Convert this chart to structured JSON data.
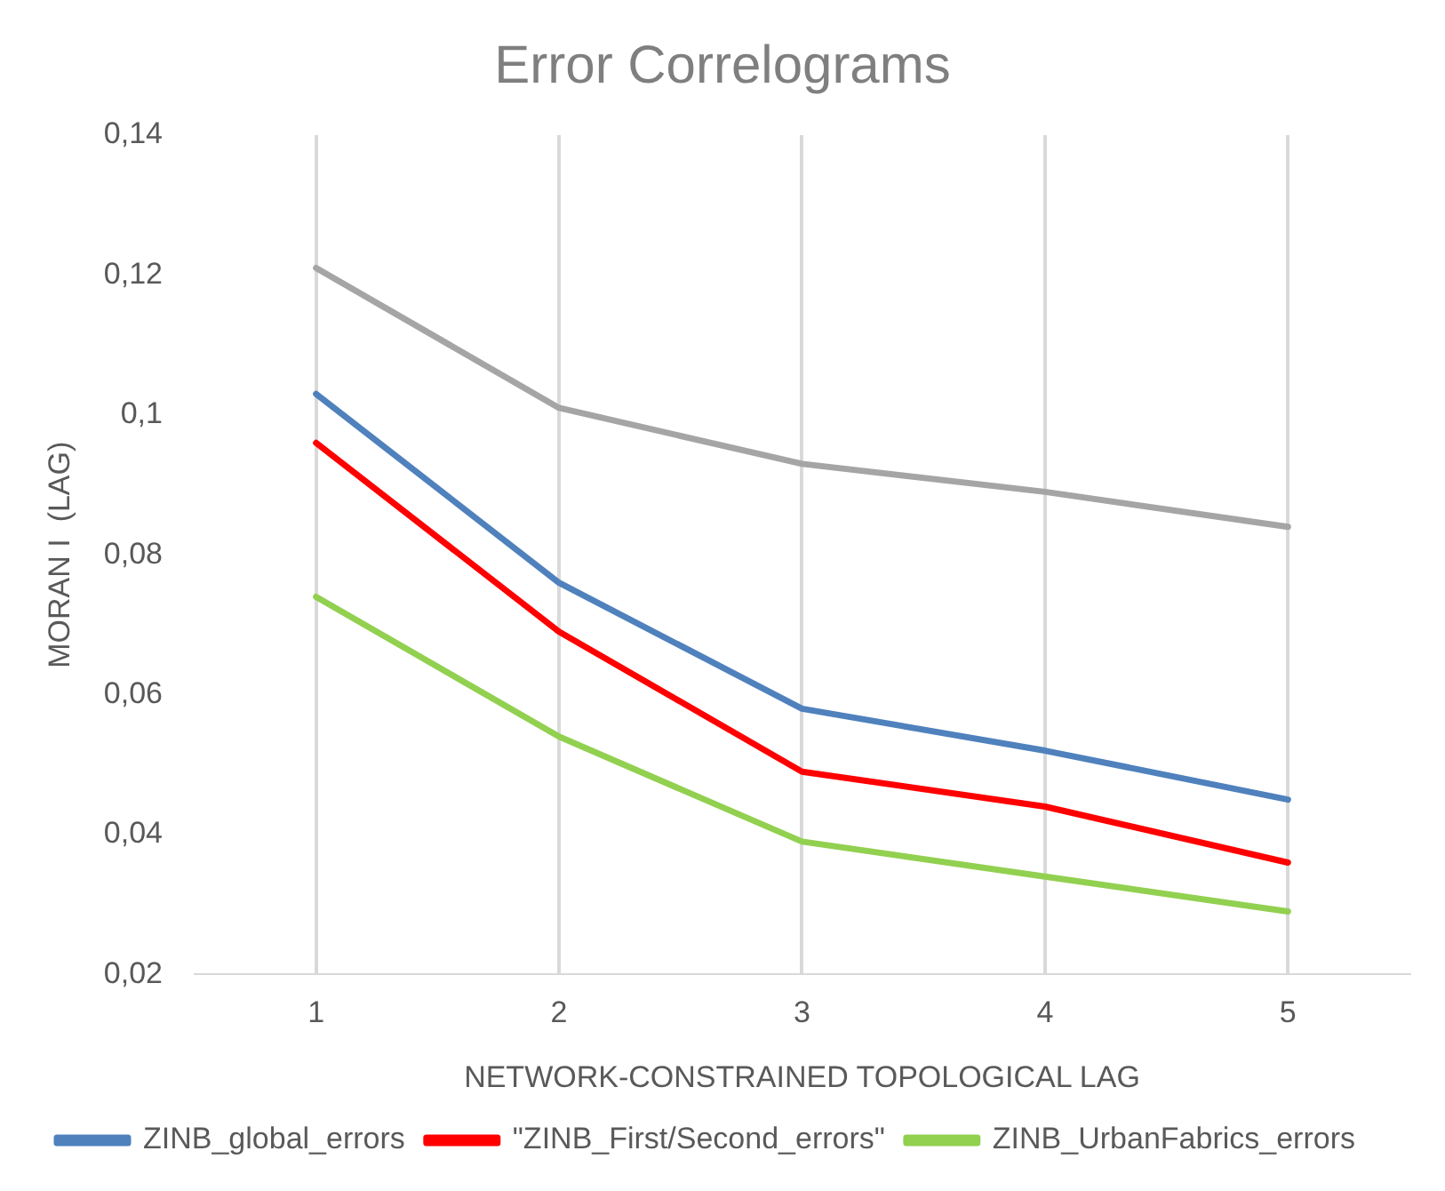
{
  "chart_data": {
    "type": "line",
    "title": "Error Correlograms",
    "xlabel": "NETWORK-CONSTRAINED TOPOLOGICAL LAG",
    "ylabel": "MORAN I  (LAG)",
    "categories": [
      "1",
      "2",
      "3",
      "4",
      "5"
    ],
    "series": [
      {
        "name": "ZINB_global_errors",
        "color": "#4f81bd",
        "values": [
          0.103,
          0.076,
          0.058,
          0.052,
          0.045
        ]
      },
      {
        "name": "\"ZINB_First/Second_errors\"",
        "color": "#ff0000",
        "values": [
          0.096,
          0.069,
          0.049,
          0.044,
          0.036
        ]
      },
      {
        "name": "ZINB_UrbanFabrics_errors",
        "color": "#92d050",
        "values": [
          0.074,
          0.054,
          0.039,
          0.034,
          0.029
        ]
      },
      {
        "color": "#a5a5a5",
        "values": [
          0.121,
          0.101,
          0.093,
          0.089,
          0.084
        ]
      }
    ],
    "ylim": [
      0.02,
      0.14
    ],
    "yticks": [
      {
        "value": 0.02,
        "label": "0,02"
      },
      {
        "value": 0.04,
        "label": "0,04"
      },
      {
        "value": 0.06,
        "label": "0,06"
      },
      {
        "value": 0.08,
        "label": "0,08"
      },
      {
        "value": 0.1,
        "label": "0,1"
      },
      {
        "value": 0.12,
        "label": "0,12"
      },
      {
        "value": 0.14,
        "label": "0,14"
      }
    ],
    "grid": "x",
    "legend": "bottom",
    "marker": "none",
    "line_style": "solid"
  }
}
